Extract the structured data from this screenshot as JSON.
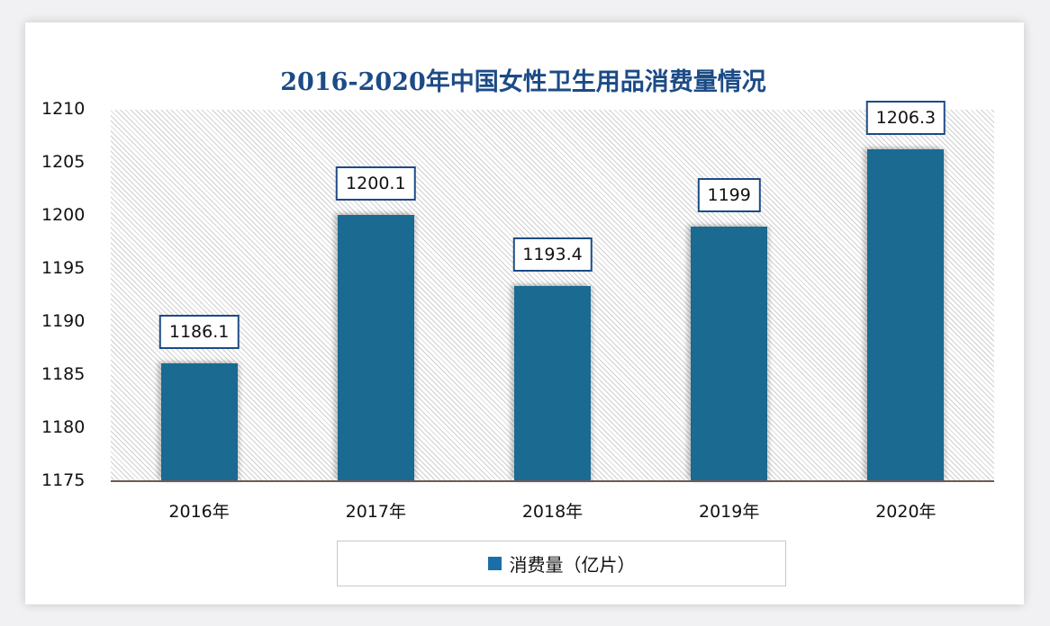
{
  "title": "2016-2020年中国女性卫生用品消费量情况",
  "colors": {
    "bar": "#1a6a91",
    "title": "#1c4b86",
    "label_border": "#1c4b86",
    "baseline": "#6e5a55"
  },
  "y_axis": {
    "ticks": [
      "1210",
      "1205",
      "1200",
      "1195",
      "1190",
      "1185",
      "1180",
      "1175"
    ]
  },
  "x_axis": {
    "labels": [
      "2016年",
      "2017年",
      "2018年",
      "2019年",
      "2020年"
    ]
  },
  "data_labels": [
    "1186.1",
    "1200.1",
    "1193.4",
    "1199",
    "1206.3"
  ],
  "legend": {
    "label": "消费量（亿片）"
  },
  "chart_data": {
    "type": "bar",
    "title": "2016-2020年中国女性卫生用品消费量情况",
    "categories": [
      "2016年",
      "2017年",
      "2018年",
      "2019年",
      "2020年"
    ],
    "series": [
      {
        "name": "消费量（亿片）",
        "values": [
          1186.1,
          1200.1,
          1193.4,
          1199,
          1206.3
        ]
      }
    ],
    "xlabel": "",
    "ylabel": "",
    "ylim": [
      1175,
      1210
    ],
    "yticks": [
      1175,
      1180,
      1185,
      1190,
      1195,
      1200,
      1205,
      1210
    ],
    "grid": false,
    "legend_position": "bottom",
    "data_labels": true
  }
}
